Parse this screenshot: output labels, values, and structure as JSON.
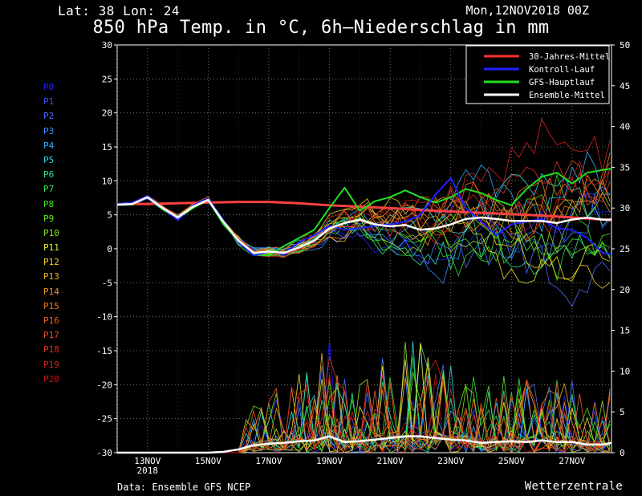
{
  "header": {
    "latlon": "Lat: 38  Lon: 24",
    "date": "Mon,12NOV2018 00Z",
    "title": "850 hPa Temp. in °C, 6h–Niederschlag in mm"
  },
  "footer": {
    "source": "Data: Ensemble GFS NCEP",
    "brand": "Wetterzentrale"
  },
  "members": [
    {
      "label": "P0",
      "color": "#2020ff"
    },
    {
      "label": "P1",
      "color": "#3050ff"
    },
    {
      "label": "P2",
      "color": "#4a6cff"
    },
    {
      "label": "P3",
      "color": "#3a8cff"
    },
    {
      "label": "P4",
      "color": "#30b0ff"
    },
    {
      "label": "P5",
      "color": "#30d8d8"
    },
    {
      "label": "P6",
      "color": "#30e890"
    },
    {
      "label": "P7",
      "color": "#30e040"
    },
    {
      "label": "P8",
      "color": "#40e020"
    },
    {
      "label": "P9",
      "color": "#60e820"
    },
    {
      "label": "P10",
      "color": "#90e020"
    },
    {
      "label": "P11",
      "color": "#e8e820"
    },
    {
      "label": "P12",
      "color": "#f0d020"
    },
    {
      "label": "P13",
      "color": "#f0b020"
    },
    {
      "label": "P14",
      "color": "#f09020"
    },
    {
      "label": "P15",
      "color": "#f07820"
    },
    {
      "label": "P16",
      "color": "#f06020"
    },
    {
      "label": "P17",
      "color": "#e84820"
    },
    {
      "label": "P18",
      "color": "#e03020"
    },
    {
      "label": "P19",
      "color": "#d82020"
    },
    {
      "label": "P20",
      "color": "#c01818"
    }
  ],
  "chart_data": {
    "type": "line",
    "title": "850 hPa Temp. in °C, 6h–Niederschlag in mm",
    "y_left_ticks": [
      30,
      25,
      20,
      15,
      10,
      5,
      0,
      -5,
      -10,
      -15,
      -20,
      -25,
      -30
    ],
    "y_right_ticks": [
      50,
      45,
      40,
      35,
      30,
      25,
      20,
      15,
      10,
      5,
      0
    ],
    "ylim_left": [
      -30,
      30
    ],
    "ylim_right": [
      0,
      50
    ],
    "x_ticks": [
      {
        "label": "13NOV",
        "sub": "2018",
        "day": 1
      },
      {
        "label": "15NOV",
        "sub": "",
        "day": 3
      },
      {
        "label": "17NOV",
        "sub": "",
        "day": 5
      },
      {
        "label": "19NOV",
        "sub": "",
        "day": 7
      },
      {
        "label": "21NOV",
        "sub": "",
        "day": 9
      },
      {
        "label": "23NOV",
        "sub": "",
        "day": 11
      },
      {
        "label": "25NOV",
        "sub": "",
        "day": 13
      },
      {
        "label": "27NOV",
        "sub": "",
        "day": 15
      }
    ],
    "x_range_days": [
      0,
      16.3
    ],
    "grid": true,
    "legend_position": "top-right",
    "legend": [
      {
        "name": "30-Jahres-Mittel",
        "color": "#ff3030"
      },
      {
        "name": "Kontroll-Lauf",
        "color": "#2020ff"
      },
      {
        "name": "GFS-Hauptlauf",
        "color": "#20e020"
      },
      {
        "name": "Ensemble-Mittel",
        "color": "#ffffff"
      }
    ],
    "series": [
      {
        "name": "30-Jahres-Mittel",
        "axis": "left",
        "color": "#ff4040",
        "width": 3,
        "x": [
          0,
          1,
          2,
          3,
          4,
          5,
          6,
          7,
          8,
          9,
          10,
          11,
          12,
          13,
          14,
          15,
          16,
          16.3
        ],
        "y": [
          6.6,
          6.6,
          6.7,
          6.8,
          6.9,
          6.9,
          6.7,
          6.4,
          6.2,
          6.0,
          5.7,
          5.5,
          5.3,
          5.1,
          4.9,
          4.6,
          4.3,
          4.2
        ]
      },
      {
        "name": "Ensemble-Mittel",
        "axis": "left",
        "color": "#ffffff",
        "width": 2.5,
        "x": [
          0,
          0.5,
          1,
          1.5,
          2,
          2.5,
          3,
          3.5,
          4,
          4.5,
          5,
          5.5,
          6,
          6.5,
          7,
          7.5,
          8,
          8.5,
          9,
          9.5,
          10,
          10.5,
          11,
          11.5,
          12,
          12.5,
          13,
          13.5,
          14,
          14.5,
          15,
          15.5,
          16,
          16.3
        ],
        "y": [
          6.5,
          6.6,
          7.6,
          6.0,
          4.6,
          6.2,
          7.2,
          4.0,
          1.2,
          -0.6,
          -0.4,
          -0.6,
          0.2,
          1.2,
          3.0,
          3.8,
          4.3,
          3.6,
          3.3,
          3.5,
          2.8,
          3.0,
          3.6,
          4.4,
          4.6,
          4.4,
          4.1,
          4.1,
          4.1,
          3.8,
          4.3,
          4.6,
          4.3,
          4.3
        ]
      },
      {
        "name": "Kontroll-Lauf",
        "axis": "left",
        "color": "#2020ff",
        "width": 2,
        "x": [
          0,
          0.5,
          1,
          1.5,
          2,
          2.5,
          3,
          3.5,
          4,
          4.5,
          5,
          5.5,
          6,
          6.5,
          7,
          7.5,
          8,
          8.5,
          9,
          9.5,
          10,
          10.5,
          11,
          11.5,
          12,
          12.5,
          13,
          13.5,
          14,
          14.5,
          15,
          15.5,
          16,
          16.3
        ],
        "y": [
          6.6,
          6.8,
          7.8,
          6.0,
          4.2,
          6.4,
          7.4,
          4.2,
          1.0,
          -1.0,
          -0.4,
          -0.8,
          1.0,
          2.0,
          3.4,
          2.8,
          3.0,
          3.4,
          3.6,
          4.0,
          5.0,
          8.0,
          10.4,
          6.0,
          4.0,
          2.0,
          3.6,
          4.0,
          4.4,
          3.0,
          2.8,
          1.6,
          -0.6,
          -0.8
        ]
      },
      {
        "name": "GFS-Hauptlauf",
        "axis": "left",
        "color": "#20e020",
        "width": 2,
        "x": [
          0,
          0.5,
          1,
          1.5,
          2,
          2.5,
          3,
          3.5,
          4,
          4.5,
          5,
          5.5,
          6,
          6.5,
          7,
          7.5,
          8,
          8.5,
          9,
          9.5,
          10,
          10.5,
          11,
          11.5,
          12,
          12.5,
          13,
          13.5,
          14,
          14.5,
          15,
          15.5,
          16,
          16.3
        ],
        "y": [
          6.6,
          6.6,
          7.6,
          5.8,
          4.4,
          6.0,
          7.2,
          3.6,
          1.2,
          -0.8,
          -1.0,
          0.4,
          1.6,
          2.8,
          6.0,
          9.0,
          5.6,
          7.0,
          7.6,
          8.6,
          7.6,
          6.8,
          7.6,
          8.8,
          8.2,
          7.2,
          6.4,
          8.8,
          10.6,
          11.2,
          9.6,
          11.2,
          11.6,
          11.8
        ]
      },
      {
        "name": "Ensemble-Mittel Niederschlag",
        "axis": "right",
        "color": "#ffffff",
        "width": 2.5,
        "x": [
          0,
          1,
          2,
          3,
          3.5,
          4,
          4.5,
          5,
          5.5,
          6,
          6.5,
          7,
          7.5,
          8,
          8.5,
          9,
          9.5,
          10,
          10.5,
          11,
          11.5,
          12,
          12.5,
          13,
          13.5,
          14,
          14.5,
          15,
          15.5,
          16,
          16.3
        ],
        "y": [
          0,
          0,
          0,
          0,
          0.1,
          0.4,
          0.9,
          1.1,
          1.2,
          1.4,
          1.5,
          2.0,
          1.3,
          1.4,
          1.6,
          1.8,
          2.0,
          2.0,
          1.8,
          1.6,
          1.5,
          1.2,
          1.3,
          1.4,
          1.3,
          1.5,
          1.3,
          1.3,
          1.0,
          1.0,
          1.2
        ]
      }
    ]
  }
}
